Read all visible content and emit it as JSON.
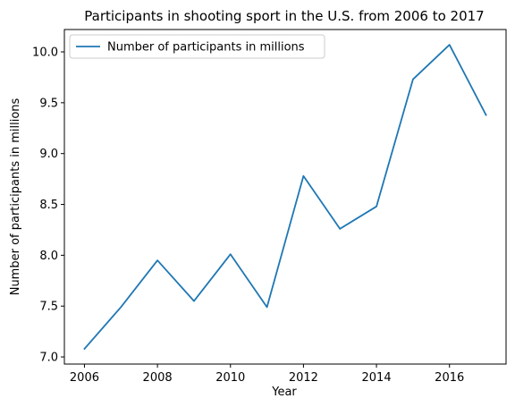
{
  "chart_data": {
    "type": "line",
    "title": "Participants in shooting sport in the U.S. from 2006 to 2017",
    "xlabel": "Year",
    "ylabel": "Number of participants in millions",
    "x": [
      2006,
      2007,
      2008,
      2009,
      2010,
      2011,
      2012,
      2013,
      2014,
      2015,
      2016,
      2017
    ],
    "series": [
      {
        "name": "Number of participants in millions",
        "values": [
          7.08,
          7.49,
          7.95,
          7.55,
          8.01,
          7.49,
          8.78,
          8.26,
          8.48,
          9.73,
          10.07,
          9.38
        ],
        "color": "#1f77b4"
      }
    ],
    "xticks": [
      2006,
      2008,
      2010,
      2012,
      2014,
      2016
    ],
    "xtick_labels": [
      "2006",
      "2008",
      "2010",
      "2012",
      "2014",
      "2016"
    ],
    "yticks": [
      7.0,
      7.5,
      8.0,
      8.5,
      9.0,
      9.5,
      10.0
    ],
    "ytick_labels": [
      "7.0",
      "7.5",
      "8.0",
      "8.5",
      "9.0",
      "9.5",
      "10.0"
    ],
    "xlim": [
      2005.45,
      2017.55
    ],
    "ylim": [
      6.93,
      10.22
    ],
    "grid": false,
    "legend": "upper left"
  }
}
